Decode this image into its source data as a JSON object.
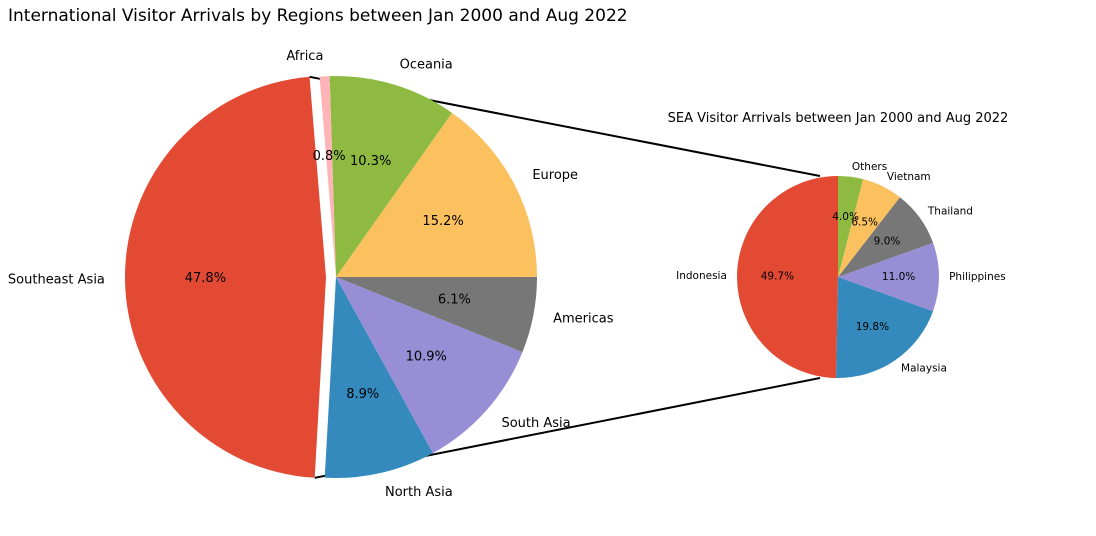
{
  "chart_data": [
    {
      "type": "pie",
      "title": "International Visitor Arrivals by Regions between Jan 2000 and Aug 2022",
      "slices": [
        {
          "label": "Southeast Asia",
          "value": 47.8,
          "pct_label": "47.8%",
          "color": "#E24A33",
          "exploded": true
        },
        {
          "label": "North Asia",
          "value": 8.9,
          "pct_label": "8.9%",
          "color": "#348ABD"
        },
        {
          "label": "South Asia",
          "value": 10.9,
          "pct_label": "10.9%",
          "color": "#988ED5"
        },
        {
          "label": "Americas",
          "value": 6.1,
          "pct_label": "6.1%",
          "color": "#777777"
        },
        {
          "label": "Europe",
          "value": 15.2,
          "pct_label": "15.2%",
          "color": "#FBC15E"
        },
        {
          "label": "Oceania",
          "value": 10.3,
          "pct_label": "10.3%",
          "color": "#8EBA42"
        },
        {
          "label": "Africa",
          "value": 0.8,
          "pct_label": "0.8%",
          "color": "#FFB5B8"
        }
      ]
    },
    {
      "type": "pie",
      "title": "SEA Visitor Arrivals between Jan 2000 and Aug 2022",
      "slices": [
        {
          "label": "Indonesia",
          "value": 49.7,
          "pct_label": "49.7%",
          "color": "#E24A33"
        },
        {
          "label": "Malaysia",
          "value": 19.8,
          "pct_label": "19.8%",
          "color": "#348ABD"
        },
        {
          "label": "Philippines",
          "value": 11.0,
          "pct_label": "11.0%",
          "color": "#988ED5"
        },
        {
          "label": "Thailand",
          "value": 9.0,
          "pct_label": "9.0%",
          "color": "#777777"
        },
        {
          "label": "Vietnam",
          "value": 6.5,
          "pct_label": "6.5%",
          "color": "#FBC15E"
        },
        {
          "label": "Others",
          "value": 4.0,
          "pct_label": "4.0%",
          "color": "#8EBA42"
        }
      ]
    }
  ]
}
